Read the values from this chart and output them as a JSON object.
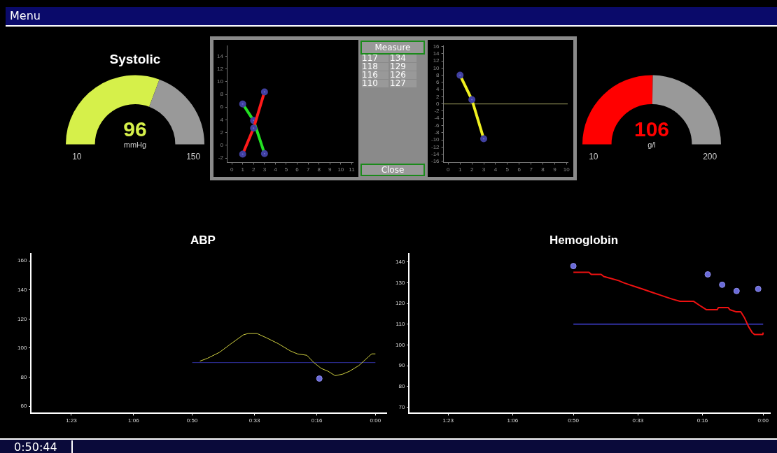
{
  "chart_data": [
    {
      "type": "donut",
      "title": "Systolic",
      "categories": [
        null,
        null
      ],
      "values": [
        61.4,
        38.6
      ],
      "colors": [
        "#d6f04a",
        "#999999"
      ],
      "annotations": [
        "96",
        "mmHg",
        "10",
        "150"
      ]
    },
    {
      "type": "line",
      "marker": "circle",
      "xlim": [
        -0.4,
        11.1
      ],
      "xticks": [
        0,
        1,
        2,
        3,
        4,
        5,
        6,
        7,
        8,
        9,
        10,
        11
      ],
      "ylim": [
        -2.7,
        15.7
      ],
      "yticks": [
        -2,
        0,
        2,
        4,
        6,
        8,
        10,
        12,
        14
      ],
      "series": [
        {
          "color": "#ff1a1a",
          "x": [
            1,
            2,
            3
          ],
          "values": [
            -1.4,
            2.7,
            8.4
          ]
        },
        {
          "color": "#22e022",
          "x": [
            1,
            2,
            3
          ],
          "values": [
            6.5,
            3.9,
            -1.3
          ]
        }
      ]
    },
    {
      "type": "line",
      "marker": "circle",
      "xlim": [
        -0.4,
        10.1
      ],
      "xticks": [
        0,
        1,
        2,
        3,
        4,
        5,
        6,
        7,
        8,
        9,
        10
      ],
      "ylim": [
        -16.3,
        16.3
      ],
      "yticks": [
        -16,
        -14,
        -12,
        -10,
        -8,
        -6,
        -4,
        -2,
        0,
        2,
        4,
        6,
        8,
        10,
        12,
        14,
        16
      ],
      "series": [
        {
          "color": "#f0f020",
          "x": [
            1,
            2,
            3
          ],
          "values": [
            8,
            1.2,
            -9.7
          ]
        }
      ],
      "ref_lines": [
        {
          "axis": "y",
          "value": 0,
          "color": "#a0a060"
        }
      ]
    },
    {
      "type": "donut",
      "categories": [
        null,
        null
      ],
      "values": [
        50.5,
        49.5
      ],
      "colors": [
        "#ff0000",
        "#999999"
      ],
      "annotations": [
        "106",
        "g/l",
        "10",
        "200"
      ]
    },
    {
      "type": "line",
      "title": "ABP",
      "xlim": [
        94,
        -3
      ],
      "xticks": [
        {
          "value": 83,
          "label": "1:23"
        },
        {
          "value": 66,
          "label": "1:06"
        },
        {
          "value": 50,
          "label": "0:50"
        },
        {
          "value": 33,
          "label": "0:33"
        },
        {
          "value": 16,
          "label": "0:16"
        },
        {
          "value": 0,
          "label": "0:00"
        }
      ],
      "ylim": [
        55,
        165
      ],
      "yticks": [
        60,
        80,
        100,
        120,
        140,
        160
      ],
      "series": [
        {
          "color": "#d0d040",
          "x": [
            47.9,
            45.8,
            42.6,
            39.4,
            36.1,
            34.8,
            32.3,
            29.7,
            26.5,
            23.2,
            21.3,
            18.7,
            16.8,
            14.8,
            12.9,
            11,
            9,
            7.1,
            4.5,
            1.9,
            1,
            0
          ],
          "values": [
            91,
            93,
            97,
            103,
            109,
            110,
            110,
            107,
            103,
            98,
            96,
            95,
            90,
            86,
            84,
            81,
            82,
            84,
            88,
            94,
            96,
            96
          ]
        },
        {
          "color": "#3030a0",
          "x": [
            50,
            0
          ],
          "values": [
            90,
            90
          ]
        },
        {
          "type": "scatter",
          "color": "#6a6ad8",
          "x": [
            15.3
          ],
          "values": [
            79
          ]
        }
      ]
    },
    {
      "type": "line",
      "title": "Hemoglobin",
      "xlim": [
        93.3,
        -1.8
      ],
      "xticks": [
        {
          "value": 83,
          "label": "1:23"
        },
        {
          "value": 66,
          "label": "1:06"
        },
        {
          "value": 50,
          "label": "0:50"
        },
        {
          "value": 33,
          "label": "0:33"
        },
        {
          "value": 16,
          "label": "0:16"
        },
        {
          "value": 0,
          "label": "0:00"
        }
      ],
      "ylim": [
        67,
        144
      ],
      "yticks": [
        70,
        80,
        90,
        100,
        110,
        120,
        130,
        140
      ],
      "series": [
        {
          "color": "#ee1111",
          "x": [
            50,
            45.9,
            45.3,
            42.7,
            42,
            40,
            38.1,
            36.8,
            35.2,
            33.6,
            31.9,
            30.3,
            28.7,
            27.1,
            25.5,
            23.8,
            21.9,
            18.3,
            16.7,
            15,
            12.1,
            11.8,
            9.2,
            8.8,
            7.2,
            5.9,
            4.9,
            3.9,
            2.9,
            2.3,
            0.1,
            0
          ],
          "values": [
            135,
            135,
            134,
            134,
            133,
            132,
            131,
            130,
            129,
            128,
            127,
            126,
            125,
            124,
            123,
            122,
            121,
            121,
            119,
            117,
            117,
            118,
            118,
            117,
            116,
            116,
            113,
            109,
            106,
            105,
            105,
            106
          ]
        },
        {
          "color": "#3030a0",
          "x": [
            50,
            0
          ],
          "values": [
            110,
            110
          ]
        },
        {
          "type": "scatter",
          "color": "#6a6ad8",
          "x": [
            50,
            14.6,
            10.8,
            7,
            1.3
          ],
          "values": [
            138,
            134,
            129,
            126,
            127
          ]
        }
      ]
    },
    {
      "type": "other",
      "title": "Measure",
      "annotations": [
        "117",
        "134",
        "118",
        "129",
        "116",
        "126",
        "110",
        "127",
        "Close"
      ]
    },
    {
      "type": "other",
      "annotations": [
        "Menu",
        "0:50:44"
      ]
    }
  ]
}
